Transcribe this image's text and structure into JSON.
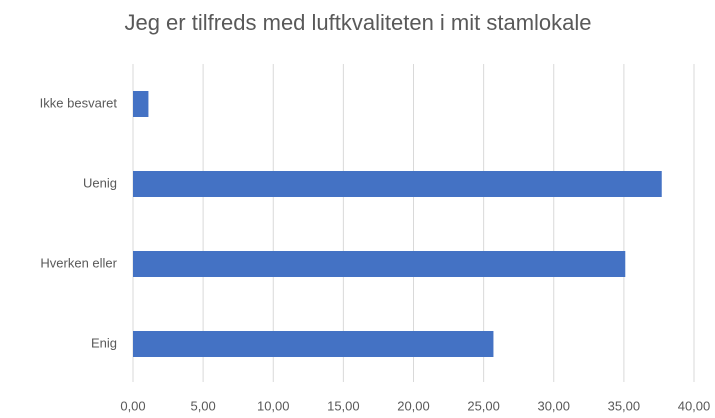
{
  "chart_data": {
    "type": "bar",
    "orientation": "horizontal",
    "title": "Jeg er tilfreds med luftkvaliteten i mit stamlokale",
    "categories": [
      "Ikke besvaret",
      "Uenig",
      "Hverken eller",
      "Enig"
    ],
    "values": [
      1.1,
      37.7,
      35.1,
      25.7
    ],
    "color": "#4472c4",
    "xlim": [
      0,
      40
    ],
    "xticks": [
      {
        "value": 0,
        "label": "0,00"
      },
      {
        "value": 5,
        "label": "5,00"
      },
      {
        "value": 10,
        "label": "10,00"
      },
      {
        "value": 15,
        "label": "15,00"
      },
      {
        "value": 20,
        "label": "20,00"
      },
      {
        "value": 25,
        "label": "25,00"
      },
      {
        "value": 30,
        "label": "30,00"
      },
      {
        "value": 35,
        "label": "35,00"
      },
      {
        "value": 40,
        "label": "40,00"
      }
    ],
    "grid": true
  }
}
